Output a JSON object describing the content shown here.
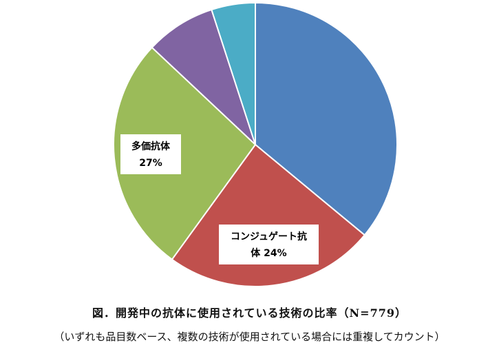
{
  "chart_data": {
    "type": "pie",
    "title": "",
    "slices": [
      {
        "label": "",
        "value": 36,
        "color": "#4F81BD",
        "text": ""
      },
      {
        "label": "コンジュゲート抗体",
        "value": 24,
        "color": "#C0504D",
        "text": "24%"
      },
      {
        "label": "多価抗体",
        "value": 27,
        "color": "#9BBB59",
        "text": "27%"
      },
      {
        "label": "",
        "value": 8,
        "color": "#8064A2",
        "text": ""
      },
      {
        "label": "",
        "value": 5,
        "color": "#4BACC6",
        "text": ""
      }
    ],
    "data_labels": [
      {
        "slice": 2,
        "lines": [
          "多価抗体",
          "27%"
        ]
      },
      {
        "slice": 1,
        "lines": [
          "コンジュゲート抗",
          "体  24%"
        ]
      }
    ]
  },
  "caption": {
    "title": "図．開発中の抗体に使用されている技術の比率（N=779）",
    "subtitle": "（いずれも品目数ベース、複数の技術が使用されている場合には重複してカウント）"
  }
}
